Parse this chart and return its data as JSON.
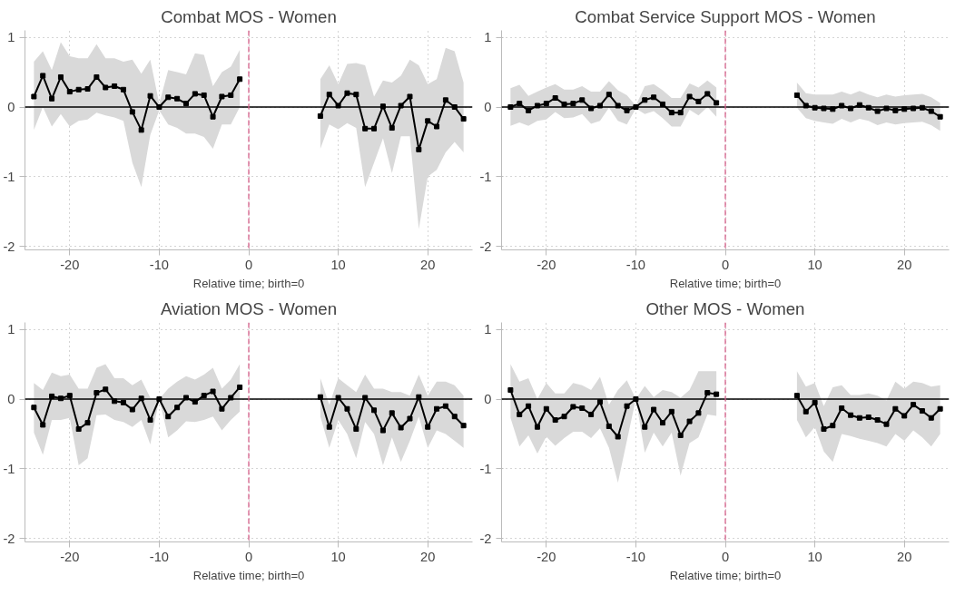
{
  "chart_data": [
    {
      "type": "line",
      "title": "Combat MOS - Women",
      "xlabel": "Relative time; birth=0",
      "x": [
        -24,
        -23,
        -22,
        -21,
        -20,
        -19,
        -18,
        -17,
        -16,
        -15,
        -14,
        -13,
        -12,
        -11,
        -10,
        -9,
        -8,
        -7,
        -6,
        -5,
        -4,
        -3,
        -2,
        -1,
        0,
        1,
        2,
        3,
        4,
        5,
        6,
        7,
        8,
        9,
        10,
        11,
        12,
        13,
        14,
        15,
        16,
        17,
        18,
        19,
        20,
        21,
        22,
        23,
        24
      ],
      "marker": "square",
      "grid": true,
      "xlim": [
        -25,
        25
      ],
      "ylim": [
        -2.05,
        1.1
      ],
      "xticks": [
        -20,
        -10,
        0,
        10,
        20
      ],
      "yticks": [
        -2,
        -1,
        0,
        1
      ],
      "series": [
        {
          "color": "#000000",
          "values": [
            0.15,
            0.45,
            0.12,
            0.43,
            0.22,
            0.25,
            0.26,
            0.43,
            0.28,
            0.3,
            0.25,
            -0.07,
            -0.33,
            0.16,
            0,
            0.14,
            0.12,
            0.05,
            0.19,
            0.17,
            -0.14,
            0.15,
            0.17,
            0.4,
            null,
            null,
            null,
            null,
            null,
            null,
            null,
            null,
            -0.13,
            0.18,
            0.02,
            0.2,
            0.18,
            -0.31,
            -0.31,
            0.01,
            -0.3,
            0.02,
            0.15,
            -0.61,
            -0.2,
            -0.28,
            0.1,
            0,
            -0.17
          ],
          "upper": [
            0.65,
            0.8,
            0.53,
            0.93,
            0.73,
            0.7,
            0.7,
            0.9,
            0.7,
            0.7,
            0.65,
            0.68,
            0.48,
            0.68,
            0.05,
            0.53,
            0.5,
            0.47,
            0.77,
            0.75,
            0.3,
            0.5,
            0.58,
            0.82,
            null,
            null,
            null,
            null,
            null,
            null,
            null,
            null,
            0.4,
            0.6,
            0.33,
            0.62,
            0.63,
            0.6,
            0.15,
            0.38,
            0.35,
            0.45,
            0.68,
            0.6,
            0.33,
            0.4,
            0.85,
            0.8,
            0.35
          ],
          "lower": [
            -0.33,
            0,
            -0.28,
            -0.1,
            -0.28,
            -0.2,
            -0.18,
            -0.08,
            -0.12,
            -0.15,
            -0.2,
            -0.8,
            -1.15,
            -0.4,
            -0.05,
            -0.25,
            -0.3,
            -0.38,
            -0.38,
            -0.43,
            -0.6,
            -0.25,
            -0.25,
            0,
            null,
            null,
            null,
            null,
            null,
            null,
            null,
            null,
            -0.6,
            -0.25,
            -0.32,
            -0.23,
            -0.3,
            -1.15,
            -0.8,
            -0.45,
            -0.95,
            -0.42,
            -0.42,
            -1.75,
            -1,
            -0.9,
            -0.65,
            -0.5,
            -0.65
          ]
        }
      ],
      "ref_lines": [
        {
          "axis": "y",
          "value": 0,
          "color": "#000000",
          "line_style": "solid"
        },
        {
          "axis": "x",
          "value": 0,
          "color": "#d6608a",
          "line_style": "dashed"
        }
      ]
    },
    {
      "type": "line",
      "title": "Combat Service Support MOS - Women",
      "xlabel": "Relative time; birth=0",
      "x": [
        -24,
        -23,
        -22,
        -21,
        -20,
        -19,
        -18,
        -17,
        -16,
        -15,
        -14,
        -13,
        -12,
        -11,
        -10,
        -9,
        -8,
        -7,
        -6,
        -5,
        -4,
        -3,
        -2,
        -1,
        0,
        1,
        2,
        3,
        4,
        5,
        6,
        7,
        8,
        9,
        10,
        11,
        12,
        13,
        14,
        15,
        16,
        17,
        18,
        19,
        20,
        21,
        22,
        23,
        24
      ],
      "marker": "square",
      "grid": true,
      "xlim": [
        -25,
        25
      ],
      "ylim": [
        -2.05,
        1.1
      ],
      "xticks": [
        -20,
        -10,
        0,
        10,
        20
      ],
      "yticks": [
        -2,
        -1,
        0,
        1
      ],
      "series": [
        {
          "color": "#000000",
          "values": [
            0,
            0.05,
            -0.05,
            0.02,
            0.05,
            0.13,
            0.04,
            0.05,
            0.1,
            -0.02,
            0.02,
            0.18,
            0.02,
            -0.05,
            0,
            0.1,
            0.14,
            0.04,
            -0.08,
            -0.08,
            0.15,
            0.08,
            0.19,
            0.06,
            null,
            null,
            null,
            null,
            null,
            null,
            null,
            null,
            0.17,
            0.02,
            -0.01,
            -0.02,
            -0.03,
            0.02,
            -0.02,
            0.03,
            -0.01,
            -0.06,
            -0.02,
            -0.05,
            -0.03,
            -0.02,
            -0.01,
            -0.06,
            -0.14
          ],
          "upper": [
            0.27,
            0.32,
            0.16,
            0.22,
            0.28,
            0.33,
            0.25,
            0.25,
            0.3,
            0.22,
            0.22,
            0.37,
            0.24,
            0.17,
            0.02,
            0.3,
            0.33,
            0.24,
            0.13,
            0.13,
            0.34,
            0.28,
            0.38,
            0.28,
            null,
            null,
            null,
            null,
            null,
            null,
            null,
            null,
            0.35,
            0.2,
            0.18,
            0.18,
            0.18,
            0.22,
            0.18,
            0.23,
            0.18,
            0.14,
            0.18,
            0.15,
            0.17,
            0.18,
            0.19,
            0.14,
            0.06
          ],
          "lower": [
            -0.27,
            -0.22,
            -0.27,
            -0.2,
            -0.18,
            -0.07,
            -0.16,
            -0.15,
            -0.1,
            -0.24,
            -0.2,
            -0.01,
            -0.2,
            -0.25,
            -0.02,
            -0.1,
            -0.06,
            -0.16,
            -0.28,
            -0.28,
            -0.04,
            -0.12,
            0,
            -0.14,
            null,
            null,
            null,
            null,
            null,
            null,
            null,
            null,
            -0.01,
            -0.16,
            -0.2,
            -0.22,
            -0.24,
            -0.17,
            -0.22,
            -0.17,
            -0.2,
            -0.26,
            -0.22,
            -0.25,
            -0.23,
            -0.22,
            -0.21,
            -0.26,
            -0.34
          ]
        }
      ],
      "ref_lines": [
        {
          "axis": "y",
          "value": 0,
          "color": "#000000",
          "line_style": "solid"
        },
        {
          "axis": "x",
          "value": 0,
          "color": "#d6608a",
          "line_style": "dashed"
        }
      ]
    },
    {
      "type": "line",
      "title": "Aviation MOS - Women",
      "xlabel": "Relative time; birth=0",
      "x": [
        -24,
        -23,
        -22,
        -21,
        -20,
        -19,
        -18,
        -17,
        -16,
        -15,
        -14,
        -13,
        -12,
        -11,
        -10,
        -9,
        -8,
        -7,
        -6,
        -5,
        -4,
        -3,
        -2,
        -1,
        0,
        1,
        2,
        3,
        4,
        5,
        6,
        7,
        8,
        9,
        10,
        11,
        12,
        13,
        14,
        15,
        16,
        17,
        18,
        19,
        20,
        21,
        22,
        23,
        24
      ],
      "marker": "square",
      "grid": true,
      "xlim": [
        -25,
        25
      ],
      "ylim": [
        -2.05,
        1.1
      ],
      "xticks": [
        -20,
        -10,
        0,
        10,
        20
      ],
      "yticks": [
        -2,
        -1,
        0,
        1
      ],
      "series": [
        {
          "color": "#000000",
          "values": [
            -0.12,
            -0.37,
            0.04,
            0.01,
            0.05,
            -0.43,
            -0.34,
            0.09,
            0.14,
            -0.03,
            -0.05,
            -0.15,
            0.01,
            -0.3,
            0,
            -0.25,
            -0.12,
            0.02,
            -0.04,
            0.05,
            0.11,
            -0.14,
            0.02,
            0.17,
            null,
            null,
            null,
            null,
            null,
            null,
            null,
            null,
            0.03,
            -0.4,
            0.02,
            -0.14,
            -0.43,
            0.02,
            -0.16,
            -0.45,
            -0.2,
            -0.41,
            -0.28,
            0.03,
            -0.4,
            -0.14,
            -0.1,
            -0.25,
            -0.38
          ],
          "upper": [
            0.23,
            0.13,
            0.38,
            0.33,
            0.35,
            0.15,
            0.15,
            0.45,
            0.5,
            0.3,
            0.3,
            0.2,
            0.28,
            0.02,
            0,
            0.15,
            0.25,
            0.33,
            0.28,
            0.35,
            0.45,
            0.15,
            0.28,
            0.5,
            null,
            null,
            null,
            null,
            null,
            null,
            null,
            null,
            0.3,
            -0.08,
            0.3,
            0.2,
            0.1,
            0.35,
            0.15,
            0.15,
            0.1,
            0.1,
            0.05,
            0.35,
            0.05,
            0.25,
            0.25,
            0.2,
            0.05
          ],
          "lower": [
            -0.48,
            -0.8,
            -0.3,
            -0.3,
            -0.27,
            -0.95,
            -0.85,
            -0.23,
            -0.22,
            -0.3,
            -0.33,
            -0.4,
            -0.3,
            -0.65,
            0,
            -0.55,
            -0.45,
            -0.32,
            -0.33,
            -0.3,
            -0.25,
            -0.45,
            -0.3,
            -0.18,
            null,
            null,
            null,
            null,
            null,
            null,
            null,
            null,
            -0.25,
            -0.7,
            -0.3,
            -0.5,
            -0.85,
            -0.33,
            -0.5,
            -0.95,
            -0.55,
            -0.9,
            -0.6,
            -0.25,
            -0.7,
            -0.45,
            -0.5,
            -0.6,
            -0.7
          ]
        }
      ],
      "ref_lines": [
        {
          "axis": "y",
          "value": 0,
          "color": "#000000",
          "line_style": "solid"
        },
        {
          "axis": "x",
          "value": 0,
          "color": "#d6608a",
          "line_style": "dashed"
        }
      ]
    },
    {
      "type": "line",
      "title": "Other MOS - Women",
      "xlabel": "Relative time; birth=0",
      "x": [
        -24,
        -23,
        -22,
        -21,
        -20,
        -19,
        -18,
        -17,
        -16,
        -15,
        -14,
        -13,
        -12,
        -11,
        -10,
        -9,
        -8,
        -7,
        -6,
        -5,
        -4,
        -3,
        -2,
        -1,
        0,
        1,
        2,
        3,
        4,
        5,
        6,
        7,
        8,
        9,
        10,
        11,
        12,
        13,
        14,
        15,
        16,
        17,
        18,
        19,
        20,
        21,
        22,
        23,
        24
      ],
      "marker": "square",
      "grid": true,
      "xlim": [
        -25,
        25
      ],
      "ylim": [
        -2.05,
        1.1
      ],
      "xticks": [
        -20,
        -10,
        0,
        10,
        20
      ],
      "yticks": [
        -2,
        -1,
        0,
        1
      ],
      "series": [
        {
          "color": "#000000",
          "values": [
            0.13,
            -0.22,
            -0.1,
            -0.4,
            -0.14,
            -0.3,
            -0.25,
            -0.11,
            -0.13,
            -0.22,
            -0.04,
            -0.39,
            -0.54,
            -0.1,
            0,
            -0.4,
            -0.15,
            -0.34,
            -0.18,
            -0.52,
            -0.32,
            -0.2,
            0.09,
            0.07,
            null,
            null,
            null,
            null,
            null,
            null,
            null,
            null,
            0.05,
            -0.18,
            -0.05,
            -0.43,
            -0.38,
            -0.13,
            -0.23,
            -0.27,
            -0.26,
            -0.3,
            -0.36,
            -0.14,
            -0.24,
            -0.08,
            -0.17,
            -0.27,
            -0.14
          ],
          "upper": [
            0.5,
            0.25,
            0.3,
            0,
            0.23,
            0.08,
            0.08,
            0.23,
            0.2,
            0.13,
            0.32,
            -0.08,
            0.13,
            0.27,
            0,
            0.19,
            0.03,
            0.13,
            0.1,
            0.02,
            0.13,
            0.4,
            0.4,
            0.4,
            null,
            null,
            null,
            null,
            null,
            null,
            null,
            null,
            0.4,
            0.18,
            0.23,
            -0.1,
            0.17,
            0.2,
            0.06,
            0.06,
            0.08,
            0.05,
            -0.02,
            0.25,
            0.15,
            0.25,
            0.23,
            0.18,
            0.2
          ],
          "lower": [
            -0.27,
            -0.68,
            -0.52,
            -0.78,
            -0.54,
            -0.67,
            -0.56,
            -0.47,
            -0.47,
            -0.56,
            -0.42,
            -0.7,
            -1.2,
            -0.6,
            0,
            -0.77,
            -0.48,
            -0.68,
            -0.48,
            -1.1,
            -0.63,
            -0.55,
            -0.22,
            -0.24,
            null,
            null,
            null,
            null,
            null,
            null,
            null,
            null,
            -0.3,
            -0.55,
            -0.4,
            -0.75,
            -0.9,
            -0.5,
            -0.53,
            -0.57,
            -0.6,
            -0.63,
            -0.68,
            -0.5,
            -0.6,
            -0.45,
            -0.55,
            -0.68,
            -0.5
          ]
        }
      ],
      "ref_lines": [
        {
          "axis": "y",
          "value": 0,
          "color": "#000000",
          "line_style": "solid"
        },
        {
          "axis": "x",
          "value": 0,
          "color": "#d6608a",
          "line_style": "dashed"
        }
      ]
    }
  ]
}
